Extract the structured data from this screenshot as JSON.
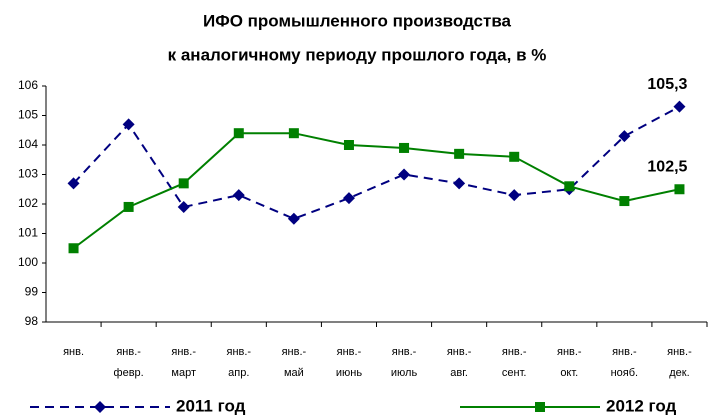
{
  "chart_data": {
    "type": "line",
    "title": [
      "ИФО промышленного производства",
      "к аналогичному периоду прошлого года, в %"
    ],
    "categories": [
      "янв.",
      "янв.-\nфевр.",
      "янв.-\nмарт",
      "янв.-\nапр.",
      "янв.-\nмай",
      "янв.-\nиюнь",
      "янв.-\nиюль",
      "янв.-\nавг.",
      "янв.-\nсент.",
      "янв.-\nокт.",
      "янв.-\nнояб.",
      "янв.-\nдек."
    ],
    "series": [
      {
        "name": "2011 год",
        "color": "#000080",
        "dash": true,
        "marker": "diamond",
        "values": [
          102.7,
          104.7,
          101.9,
          102.3,
          101.5,
          102.2,
          103.0,
          102.7,
          102.3,
          102.5,
          104.3,
          105.3
        ],
        "value_labels": [
          null,
          null,
          null,
          null,
          null,
          null,
          null,
          null,
          null,
          null,
          null,
          "105,3"
        ]
      },
      {
        "name": "2012 год",
        "color": "#008000",
        "dash": false,
        "marker": "square",
        "values": [
          100.5,
          101.9,
          102.7,
          104.4,
          104.4,
          104.0,
          103.9,
          103.7,
          103.6,
          102.6,
          102.1,
          102.5
        ],
        "value_labels": [
          null,
          null,
          null,
          null,
          null,
          null,
          null,
          null,
          null,
          null,
          null,
          "102,5"
        ]
      }
    ],
    "ylim": [
      98,
      106
    ],
    "yticks": [
      98,
      99,
      100,
      101,
      102,
      103,
      104,
      105,
      106
    ],
    "grid": false
  }
}
